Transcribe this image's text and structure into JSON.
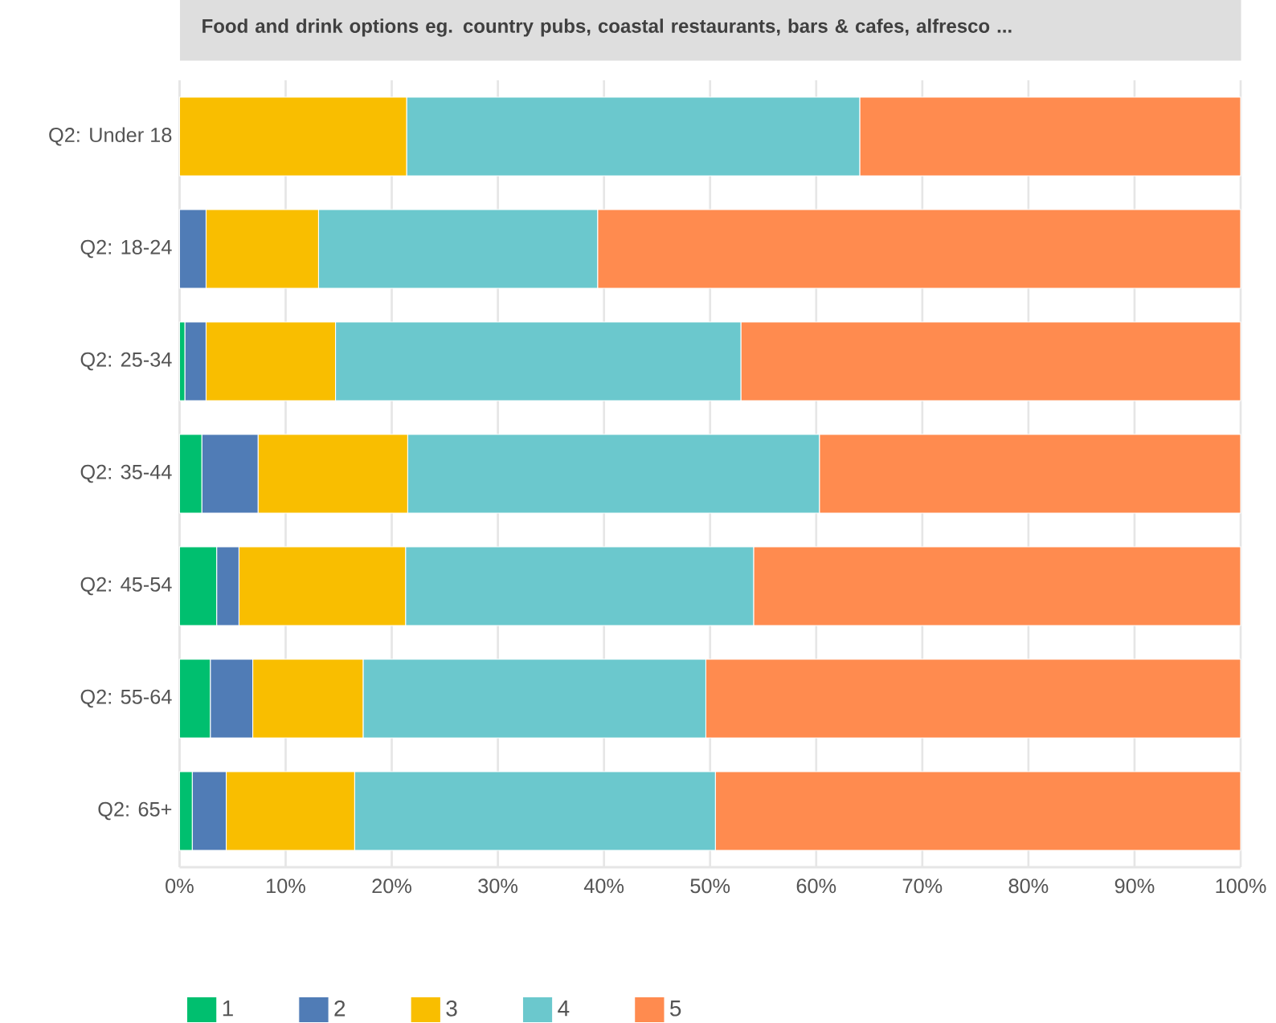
{
  "chart_data": {
    "type": "bar",
    "orientation": "horizontal",
    "stacked": true,
    "title": "Food and drink options eg. country pubs, coastal restaurants, bars & cafes, alfresco ...",
    "categories": [
      "Q2: Under 18",
      "Q2: 18-24",
      "Q2: 25-34",
      "Q2: 35-44",
      "Q2: 45-54",
      "Q2: 55-64",
      "Q2: 65+"
    ],
    "series": [
      {
        "name": "1",
        "color": "#00bf6f",
        "values": [
          0,
          0,
          0.5,
          2.1,
          3.5,
          2.9,
          1.2
        ]
      },
      {
        "name": "2",
        "color": "#507cb6",
        "values": [
          0,
          2.5,
          2.0,
          5.3,
          2.1,
          4.0,
          3.2
        ]
      },
      {
        "name": "3",
        "color": "#f9be00",
        "values": [
          21.4,
          10.6,
          12.2,
          14.1,
          15.7,
          10.4,
          12.1
        ]
      },
      {
        "name": "4",
        "color": "#6bc8cd",
        "values": [
          42.7,
          26.3,
          38.2,
          38.8,
          32.8,
          32.3,
          34.0
        ]
      },
      {
        "name": "5",
        "color": "#ff8b4f",
        "values": [
          35.9,
          60.6,
          47.1,
          39.7,
          45.9,
          50.4,
          49.5
        ]
      }
    ],
    "xlim": [
      0,
      100
    ],
    "xticks": [
      {
        "value": 0,
        "label": "0%"
      },
      {
        "value": 10,
        "label": "10%"
      },
      {
        "value": 20,
        "label": "20%"
      },
      {
        "value": 30,
        "label": "30%"
      },
      {
        "value": 40,
        "label": "40%"
      },
      {
        "value": 50,
        "label": "50%"
      },
      {
        "value": 60,
        "label": "60%"
      },
      {
        "value": 70,
        "label": "70%"
      },
      {
        "value": 80,
        "label": "80%"
      },
      {
        "value": 90,
        "label": "90%"
      },
      {
        "value": 100,
        "label": "100%"
      }
    ],
    "grid": "x",
    "legend": "bottom left"
  }
}
